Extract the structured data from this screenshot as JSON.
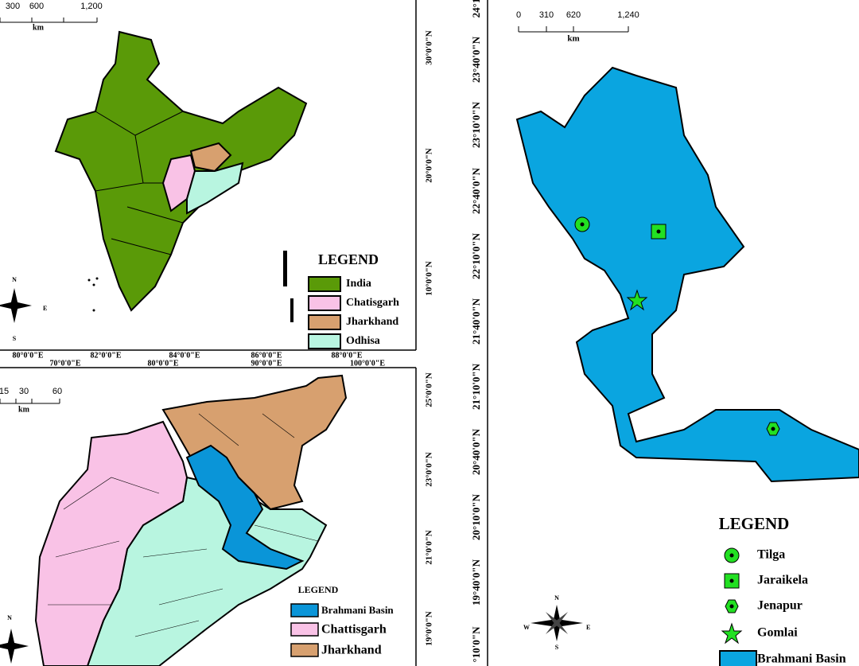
{
  "india_map": {
    "scale": [
      "300",
      "600",
      "1,200"
    ],
    "scale_unit": "km",
    "lat_labels": [
      "30°0'0\"N",
      "20°0'0\"N",
      "10°0'0\"N"
    ],
    "lon_labels_upper": [
      "80°0'0\"E",
      "82°0'0\"E",
      "84°0'0\"E",
      "86°0'0\"E",
      "88°0'0\"E"
    ],
    "lon_labels_lower": [
      "70°0'0\"E",
      "80°0'0\"E",
      "90°0'0\"E",
      "100°0'0\"E"
    ],
    "legend": {
      "title": "LEGEND",
      "items": [
        "India",
        "Chatisgarh",
        "Jharkhand",
        "Odhisa"
      ]
    },
    "compass": [
      "N",
      "E",
      "S"
    ]
  },
  "state_map": {
    "scale": [
      "15",
      "30",
      "60"
    ],
    "scale_unit": "km",
    "lat_labels": [
      "25°0'0\"N",
      "23°0'0\"N",
      "21°0'0\"N",
      "19°0'0\"N"
    ],
    "legend": {
      "title": "LEGEND",
      "items": [
        "Brahmani Basin",
        "Chattisgarh",
        "Jharkhand"
      ]
    },
    "compass": [
      "N"
    ]
  },
  "basin_map": {
    "scale": [
      "0",
      "310",
      "620",
      "1,240"
    ],
    "scale_unit": "km",
    "lat_labels": [
      "24°1",
      "23°40'0\"N",
      "23°10'0\"N",
      "22°40'0\"N",
      "22°10'0\"N",
      "21°40'0\"N",
      "21°10'0\"N",
      "20°40'0\"N",
      "20°10'0\"N",
      "19°40'0\"N",
      "°10'0\"N"
    ],
    "legend": {
      "title": "LEGEND",
      "items": [
        "Tilga",
        "Jaraikela",
        "Jenapur",
        "Gomlai",
        "Brahmani Basin"
      ]
    },
    "compass": [
      "N",
      "E",
      "S",
      "W"
    ]
  }
}
